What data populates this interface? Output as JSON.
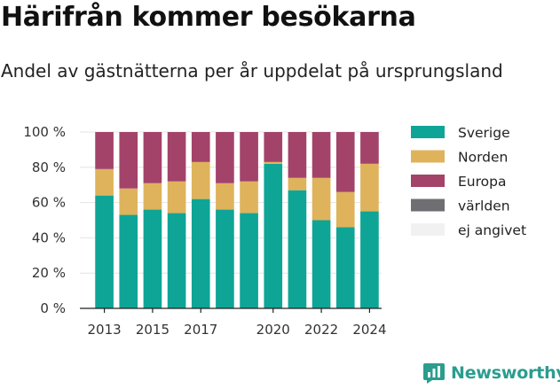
{
  "title": "Härifrån kommer besökarna",
  "subtitle": "Andel av gästnätterna per år uppdelat på ursprungsland",
  "brand": "Newsworthy",
  "chart_data": {
    "type": "bar",
    "stacked": true,
    "categories": [
      "2013",
      "2014",
      "2015",
      "2016",
      "2017",
      "2018",
      "2019",
      "2020",
      "2021",
      "2022",
      "2023",
      "2024"
    ],
    "x_tick_labels": [
      "2013",
      "2015",
      "2017",
      "2020",
      "2022",
      "2024"
    ],
    "y_ticks": [
      "0 %",
      "20 %",
      "40 %",
      "60 %",
      "80 %",
      "100 %"
    ],
    "ylim": [
      0,
      100
    ],
    "grid": true,
    "legend_position": "right",
    "series": [
      {
        "name": "Sverige",
        "color": "#0ea597",
        "values": [
          64,
          53,
          56,
          54,
          62,
          56,
          54,
          82,
          67,
          50,
          46,
          55
        ]
      },
      {
        "name": "Norden",
        "color": "#deb35c",
        "values": [
          15,
          15,
          15,
          18,
          21,
          15,
          18,
          1,
          7,
          24,
          20,
          27
        ]
      },
      {
        "name": "Europa",
        "color": "#a3436a",
        "values": [
          21,
          32,
          29,
          28,
          17,
          29,
          28,
          17,
          26,
          26,
          34,
          18
        ]
      },
      {
        "name": "världen",
        "color": "#6f6f73",
        "values": [
          0,
          0,
          0,
          0,
          0,
          0,
          0,
          0,
          0,
          0,
          0,
          0
        ]
      },
      {
        "name": "ej angivet",
        "color": "#f1f1f1",
        "values": [
          0,
          0,
          0,
          0,
          0,
          0,
          0,
          0,
          0,
          0,
          0,
          0
        ]
      }
    ]
  }
}
